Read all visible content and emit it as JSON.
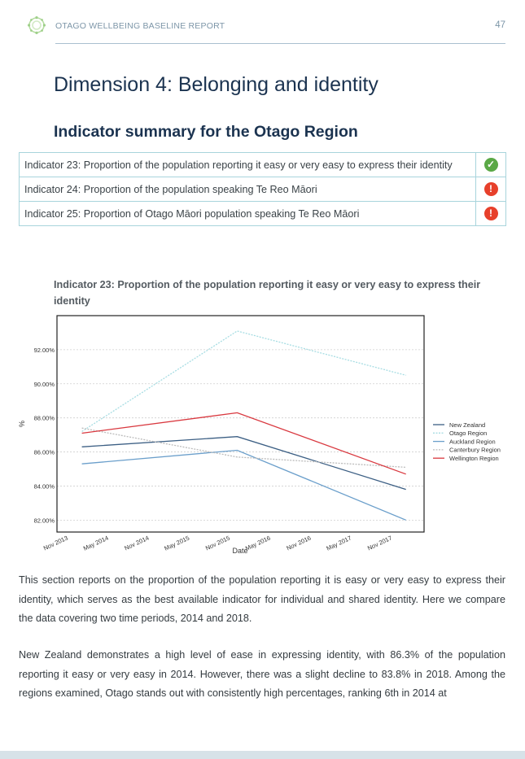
{
  "header": {
    "running_title": "OTAGO WELLBEING BASELINE REPORT",
    "page_number": "47"
  },
  "dimension_title": "Dimension 4: Belonging and identity",
  "indicator_heading": "Indicator summary for the Otago Region",
  "summary_table": [
    {
      "text": "Indicator 23: Proportion of the population reporting it easy or very easy to express their identity",
      "status": "ok",
      "status_icon": "check-circle-icon",
      "status_glyph": "✓",
      "status_color": "#5aa846"
    },
    {
      "text": "Indicator 24: Proportion of the population speaking Te Reo Māori",
      "status": "warning",
      "status_icon": "exclamation-circle-icon",
      "status_glyph": "!",
      "status_color": "#e7402b"
    },
    {
      "text": "Indicator 25: Proportion of Otago Māori population speaking Te Reo Māori",
      "status": "warning",
      "status_icon": "exclamation-circle-icon",
      "status_glyph": "!",
      "status_color": "#e7402b"
    }
  ],
  "chart_title": "Indicator 23: Proportion of the population reporting it easy or very easy to express their identity",
  "chart_data": {
    "type": "line",
    "title": "Indicator 23: Proportion of the population reporting it easy or very easy to express their identity",
    "xlabel": "Date",
    "ylabel": "%",
    "x": [
      "2014-01",
      "2015-12",
      "2018-01"
    ],
    "x_ticks": [
      "Nov 2013",
      "May 2014",
      "Nov 2014",
      "May 2015",
      "Nov 2015",
      "May 2016",
      "Nov 2016",
      "May 2017",
      "Nov 2017"
    ],
    "y_ticks": [
      "82.00%",
      "84.00%",
      "86.00%",
      "88.00%",
      "90.00%",
      "92.00%"
    ],
    "ylim": [
      81.3,
      94.0
    ],
    "grid": true,
    "legend_position": "right",
    "series": [
      {
        "name": "New Zealand",
        "values": [
          86.3,
          86.9,
          83.8
        ],
        "color": "#3c5f84"
      },
      {
        "name": "Otago Region",
        "values": [
          87.2,
          93.1,
          90.5
        ],
        "color": "#a7dde3",
        "dashed": true
      },
      {
        "name": "Auckland Region",
        "values": [
          85.3,
          86.1,
          82.0
        ],
        "color": "#6b9fcb"
      },
      {
        "name": "Canterbury Region",
        "values": [
          87.4,
          85.7,
          85.1
        ],
        "color": "#bcbcbc",
        "dashed": true
      },
      {
        "name": "Wellington Region",
        "values": [
          87.1,
          88.3,
          84.7
        ],
        "color": "#d9383f"
      }
    ]
  },
  "paragraphs": [
    "This section reports on the proportion of the population reporting it is easy or very easy to express their identity, which serves as the best available indicator for individual and shared identity. Here we compare the data covering two time periods, 2014 and 2018.",
    "New Zealand demonstrates a high level of ease in expressing identity, with 86.3% of the population reporting it easy or very easy in 2014. However, there was a slight decline to 83.8% in 2018. Among the regions examined, Otago stands out with consistently high percentages, ranking 6th in 2014 at"
  ]
}
